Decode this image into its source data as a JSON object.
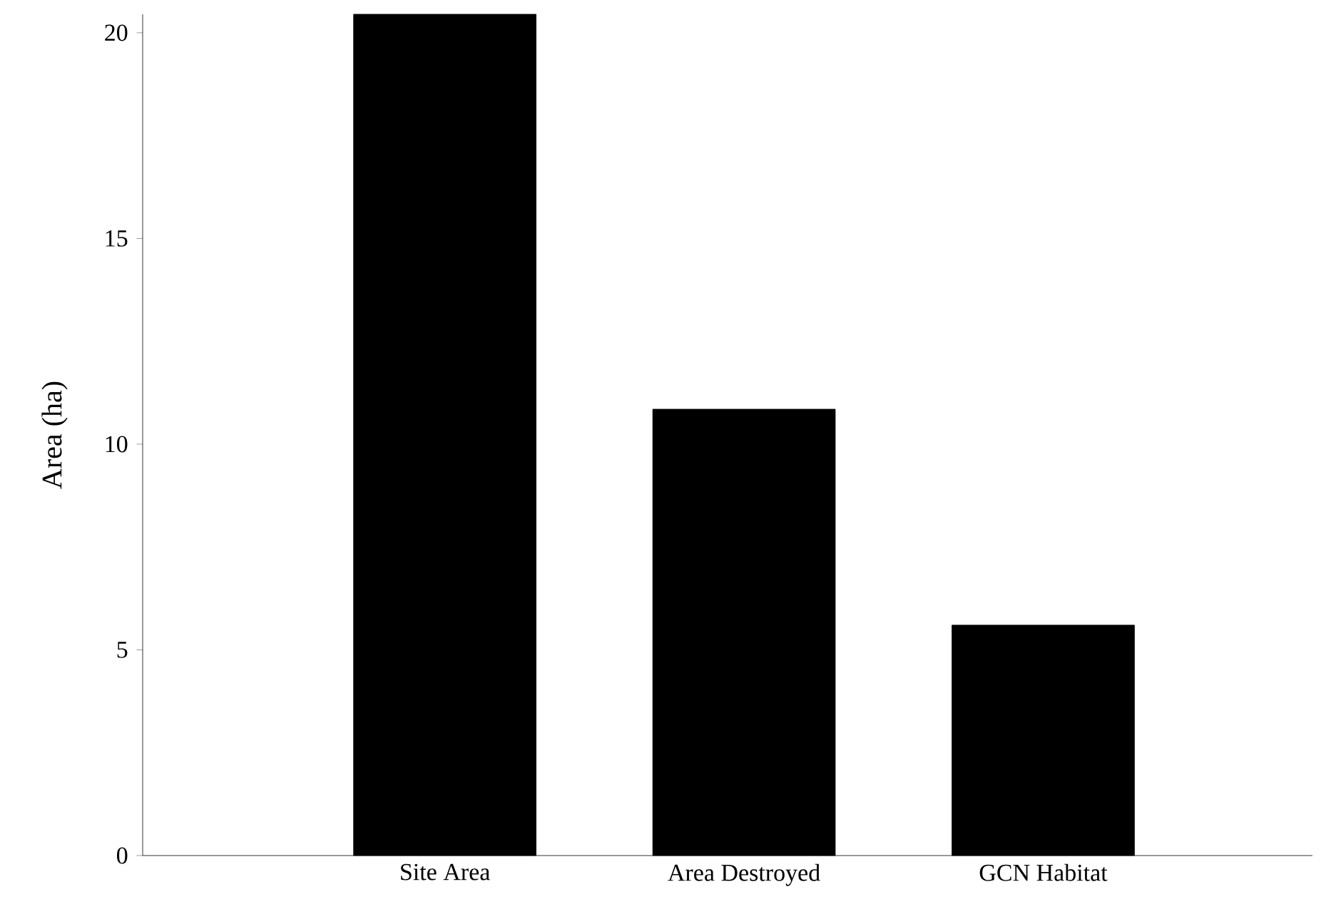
{
  "chart_data": {
    "type": "bar",
    "ylabel": "Area (ha)",
    "categories": [
      "Site Area",
      "Area Destroyed",
      "GCN Habitat"
    ],
    "values": [
      20.45,
      10.85,
      5.6
    ],
    "color": "#000000",
    "ylim": [
      0,
      20.45
    ],
    "yticks": [
      0,
      5,
      10,
      15,
      20
    ],
    "grid": false
  }
}
